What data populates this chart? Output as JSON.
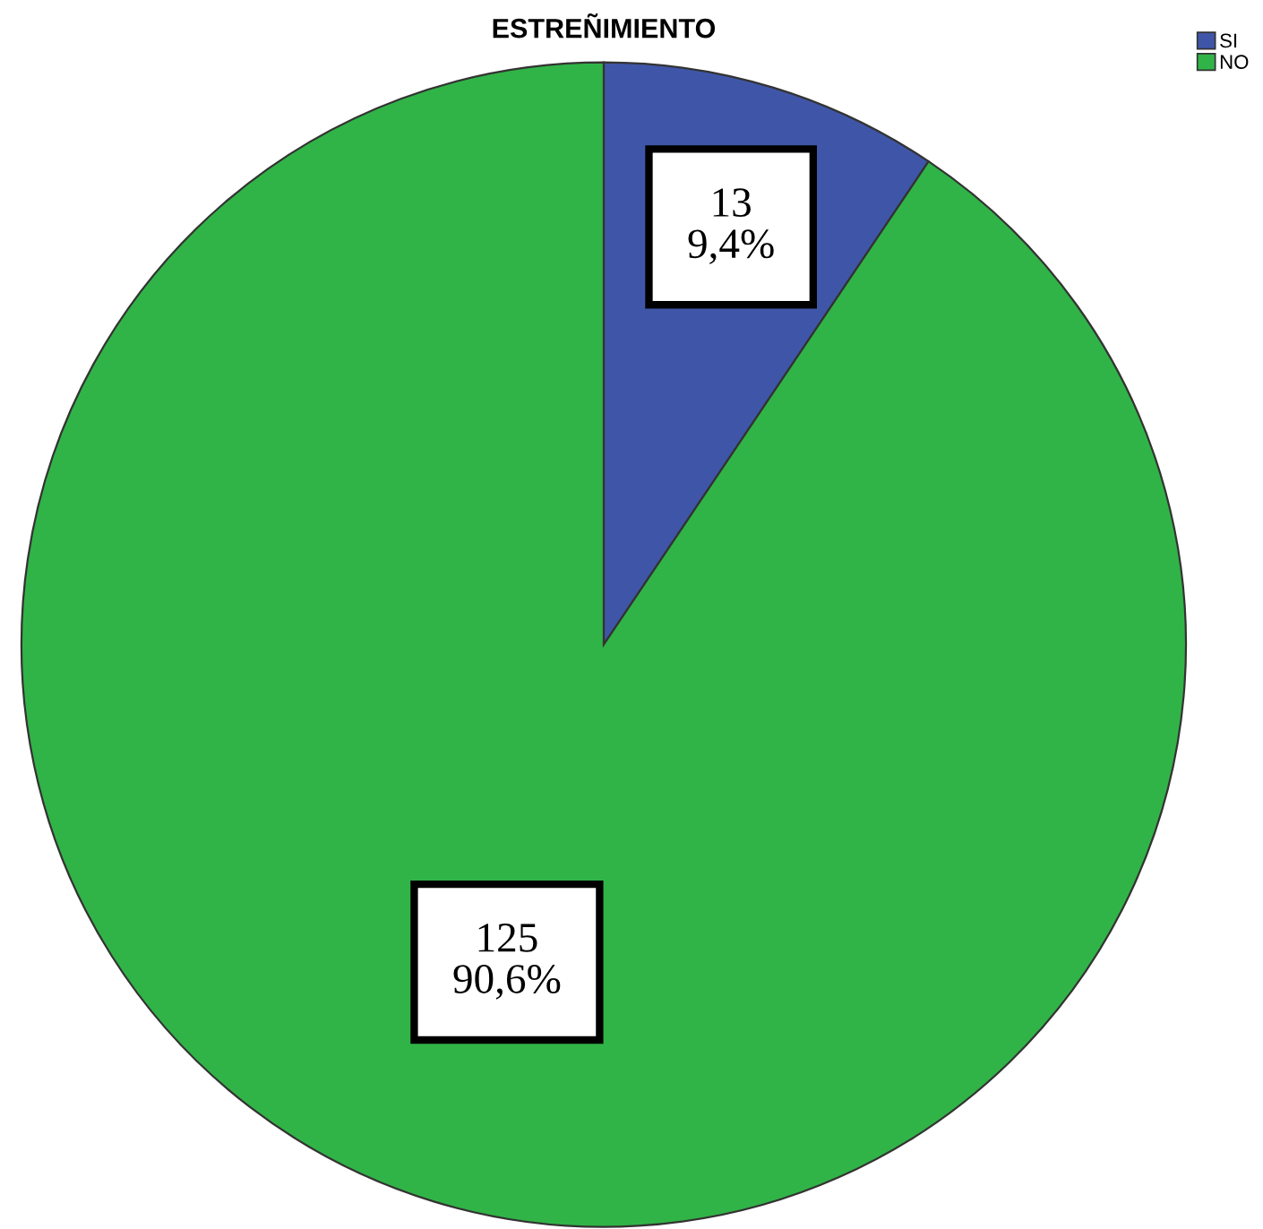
{
  "chart_data": {
    "type": "pie",
    "title": "ESTREÑIMIENTO",
    "categories": [
      "SI",
      "NO"
    ],
    "values": [
      13,
      125
    ],
    "colors": [
      "#3f56a8",
      "#31b447"
    ],
    "value_labels": [
      "13\n9,4%",
      "125\n90,6%"
    ],
    "legend": "top right"
  }
}
